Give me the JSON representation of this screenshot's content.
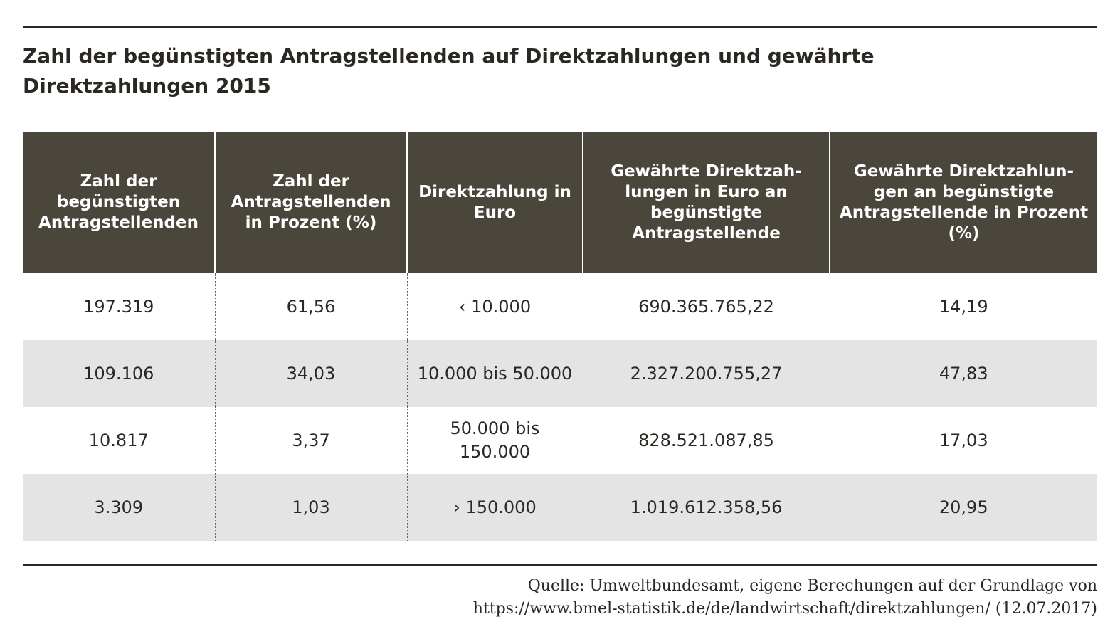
{
  "title": {
    "line1": "Zahl der begünstigten Antragstellenden auf Direktzahlungen und gewährte",
    "line2": "Direktzahlungen 2015"
  },
  "table": {
    "headers": [
      "Zahl der begünstigten Antragstellenden",
      "Zahl der Antragstellenden in Prozent (%)",
      "Direktzahlung in Euro",
      "Gewährte Direktzah- lungen in Euro an begünstigte Antragstellende",
      "Gewährte Direktzahlun- gen an begünstigte Antragstellende in Prozent (%)"
    ],
    "rows": [
      [
        "197.319",
        "61,56",
        "‹ 10.000",
        "690.365.765,22",
        "14,19"
      ],
      [
        "109.106",
        "34,03",
        "10.000 bis 50.000",
        "2.327.200.755,27",
        "47,83"
      ],
      [
        "10.817",
        "3,37",
        "50.000 bis 150.000",
        "828.521.087,85",
        "17,03"
      ],
      [
        "3.309",
        "1,03",
        "› 150.000",
        "1.019.612.358,56",
        "20,95"
      ]
    ]
  },
  "source": {
    "line1": "Quelle: Umweltbundesamt, eigene Berechungen auf der Grundlage von",
    "line2": "https://www.bmel-statistik.de/de/landwirtschaft/direktzahlungen/ (12.07.2017)"
  },
  "colors": {
    "header_bg": "#4b463c",
    "header_text": "#ffffff",
    "shade_row": "#e4e4e4",
    "text": "#2b2823"
  }
}
